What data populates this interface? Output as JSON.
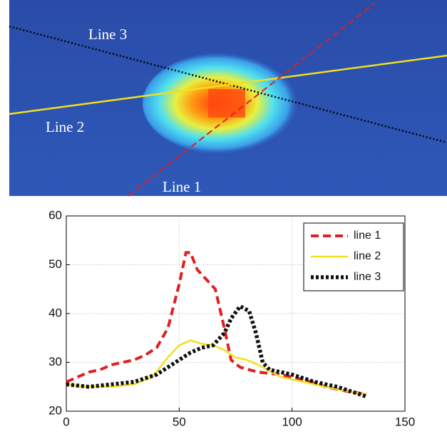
{
  "image": {
    "labels": [
      "Line 1",
      "Line 2",
      "Line 3"
    ]
  },
  "chart_data": {
    "type": "line",
    "xlim": [
      0,
      150
    ],
    "xticks": [
      0,
      50,
      100,
      150
    ],
    "ylim": [
      20,
      60
    ],
    "yticks": [
      20,
      30,
      40,
      50,
      60
    ],
    "grid": true,
    "legend": "upper right",
    "series": [
      {
        "name": "line 1",
        "color": "#e02020",
        "style": "dashed",
        "x": [
          0,
          5,
          10,
          15,
          20,
          25,
          30,
          35,
          40,
          45,
          50,
          53,
          55,
          58,
          62,
          66,
          70,
          73,
          77,
          85,
          95,
          105,
          115,
          125,
          133
        ],
        "values": [
          26,
          27,
          28,
          28.5,
          29.5,
          30,
          30.5,
          31.5,
          33,
          37,
          46,
          52.5,
          52.5,
          49,
          47,
          45,
          37,
          30.5,
          29,
          28,
          27.5,
          26.5,
          25,
          24,
          23.5
        ]
      },
      {
        "name": "line 2",
        "color": "#f2e01a",
        "style": "solid",
        "x": [
          0,
          10,
          20,
          30,
          38,
          45,
          50,
          55,
          60,
          65,
          70,
          75,
          80,
          85,
          95,
          105,
          115,
          125,
          133
        ],
        "values": [
          25.5,
          25,
          25,
          25.5,
          27,
          31,
          33.5,
          34.5,
          33.8,
          33.5,
          32.5,
          31,
          30.5,
          29.5,
          27,
          26,
          25,
          24,
          23.5
        ]
      },
      {
        "name": "line 3",
        "color": "#111111",
        "style": "dotted",
        "x": [
          0,
          10,
          20,
          30,
          40,
          45,
          50,
          55,
          60,
          65,
          70,
          73,
          77,
          81,
          84,
          87,
          90,
          100,
          110,
          120,
          133
        ],
        "values": [
          25.5,
          25,
          25.5,
          26,
          27.5,
          29,
          30.5,
          32,
          33,
          33.5,
          36,
          39,
          41.5,
          40.5,
          36,
          30,
          28.5,
          27.5,
          26,
          25,
          23
        ]
      }
    ]
  }
}
